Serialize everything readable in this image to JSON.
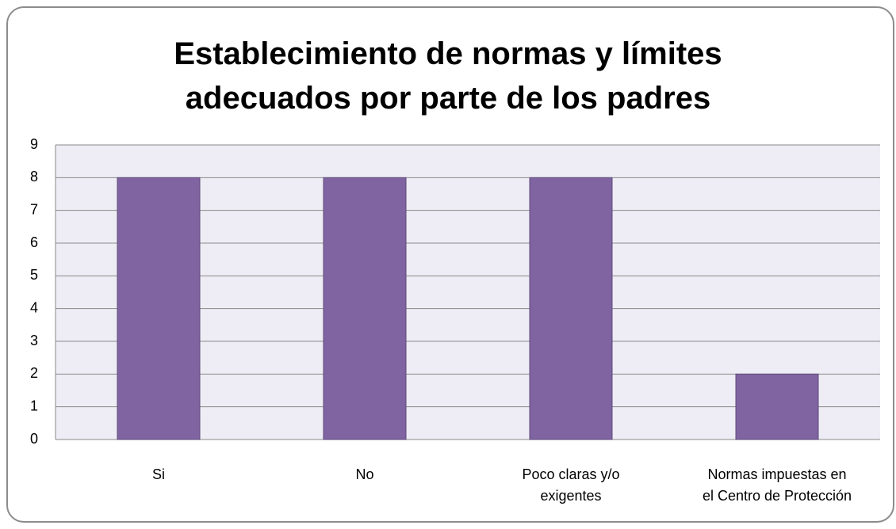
{
  "chart_data": {
    "type": "bar",
    "title": "Establecimiento de normas y límites adecuados por parte de los padres",
    "categories": [
      "Si",
      "No",
      "Poco claras y/o exigentes",
      "Normas impuestas en el Centro de Protección"
    ],
    "values": [
      8,
      8,
      8,
      2
    ],
    "color": "#8064a2",
    "ylim": [
      0,
      9
    ],
    "yticks": [
      0,
      1,
      2,
      3,
      4,
      5,
      6,
      7,
      8,
      9
    ],
    "grid": true
  }
}
